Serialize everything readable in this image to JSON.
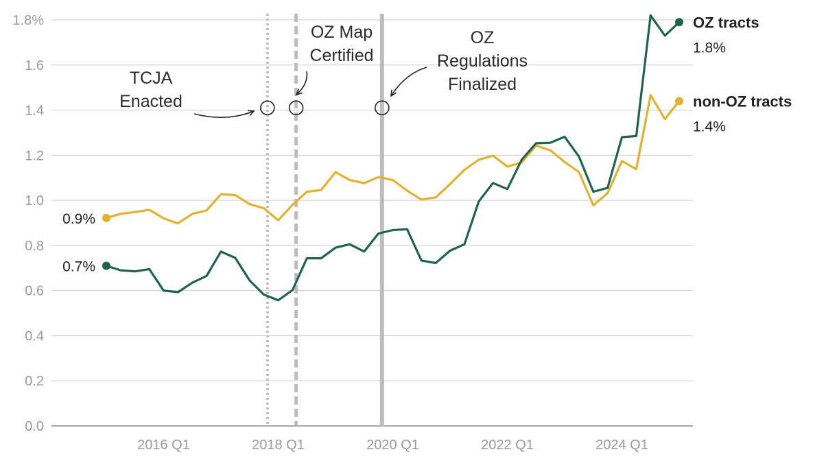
{
  "chart_data": {
    "type": "line",
    "title": "",
    "xlabel": "",
    "ylabel": "",
    "ylim": [
      0,
      1.8
    ],
    "y_ticks": [
      {
        "value": 0.0,
        "label": "0.0"
      },
      {
        "value": 0.2,
        "label": "0.2"
      },
      {
        "value": 0.4,
        "label": "0.4"
      },
      {
        "value": 0.6,
        "label": "0.6"
      },
      {
        "value": 0.8,
        "label": "0.8"
      },
      {
        "value": 1.0,
        "label": "1.0"
      },
      {
        "value": 1.2,
        "label": "1.2"
      },
      {
        "value": 1.4,
        "label": "1.4"
      },
      {
        "value": 1.6,
        "label": "1.6"
      },
      {
        "value": 1.8,
        "label": "1.8%"
      }
    ],
    "x_ticks": [
      {
        "index": 4,
        "label": "2016 Q1"
      },
      {
        "index": 12,
        "label": "2018 Q1"
      },
      {
        "index": 20,
        "label": "2020 Q1"
      },
      {
        "index": 28,
        "label": "2022 Q1"
      },
      {
        "index": 36,
        "label": "2024 Q1"
      }
    ],
    "grid": true,
    "colors": {
      "oz": "#1f6448",
      "non_oz": "#e3b12f",
      "grid": "#cccccc",
      "axis": "#8a8a8a"
    },
    "series": [
      {
        "name": "OZ tracts",
        "key": "oz",
        "end_label": "1.8%",
        "start_label": "0.7%",
        "values": [
          0.71,
          0.69,
          0.685,
          0.695,
          0.6,
          0.593,
          0.635,
          0.665,
          0.773,
          0.745,
          0.645,
          0.582,
          0.557,
          0.602,
          0.743,
          0.743,
          0.79,
          0.805,
          0.773,
          0.853,
          0.868,
          0.872,
          0.733,
          0.722,
          0.777,
          0.805,
          0.995,
          1.077,
          1.05,
          1.18,
          1.253,
          1.255,
          1.282,
          1.194,
          1.038,
          1.055,
          1.28,
          1.285,
          1.82,
          1.73,
          1.79
        ]
      },
      {
        "name": "non-OZ tracts",
        "key": "non_oz",
        "end_label": "1.4%",
        "start_label": "0.9%",
        "values": [
          0.922,
          0.94,
          0.948,
          0.958,
          0.92,
          0.898,
          0.94,
          0.955,
          1.027,
          1.023,
          0.983,
          0.965,
          0.912,
          0.98,
          1.038,
          1.046,
          1.125,
          1.09,
          1.076,
          1.103,
          1.09,
          1.043,
          1.003,
          1.013,
          1.072,
          1.135,
          1.18,
          1.198,
          1.15,
          1.168,
          1.243,
          1.222,
          1.17,
          1.125,
          0.978,
          1.032,
          1.174,
          1.138,
          1.466,
          1.36,
          1.44
        ]
      }
    ],
    "annotations": [
      {
        "key": "tcja",
        "lines": [
          "TCJA",
          "Enacted"
        ],
        "x_index": 11.25,
        "y_value": 1.41,
        "line_style": "dotted"
      },
      {
        "key": "map",
        "lines": [
          "OZ Map",
          "Certified"
        ],
        "x_index": 13.25,
        "y_value": 1.41,
        "line_style": "dashed"
      },
      {
        "key": "regs",
        "lines": [
          "OZ",
          "Regulations",
          "Finalized"
        ],
        "x_index": 19.25,
        "y_value": 1.41,
        "line_style": "solid"
      }
    ]
  }
}
